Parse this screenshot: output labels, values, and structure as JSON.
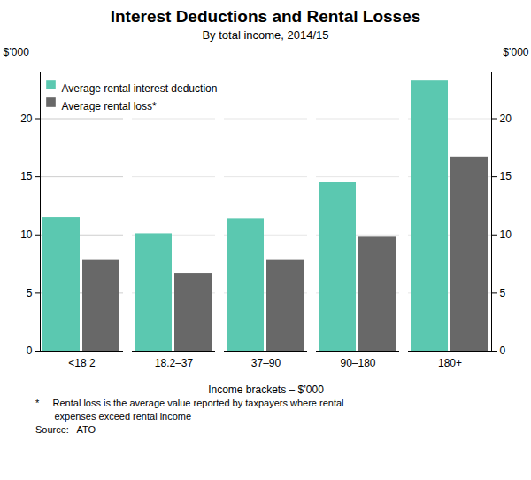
{
  "chart_data": {
    "type": "bar",
    "title": "Interest Deductions and Rental Losses",
    "subtitle": "By total income, 2014/15",
    "xlabel": "Income brackets – $’000",
    "ylabel": "$’000",
    "y2label": "$’000",
    "categories": [
      "<18 2",
      "18.2–37",
      "37–90",
      "90–180",
      "180+"
    ],
    "series": [
      {
        "name": "Average rental interest deduction",
        "color": "#5bc8b0",
        "values": [
          11.5,
          10.1,
          11.4,
          14.5,
          23.3
        ]
      },
      {
        "name": "Average rental loss*",
        "color": "#686868",
        "values": [
          7.8,
          6.7,
          7.8,
          9.8,
          16.7
        ]
      }
    ],
    "ylim": [
      0,
      24
    ],
    "yticks": [
      0,
      5,
      10,
      15,
      20
    ],
    "y2lim": [
      0,
      24
    ],
    "y2ticks": [
      0,
      5,
      10,
      15,
      20
    ],
    "grid": true,
    "legend": "upper left",
    "annotations": [
      "*     Rental loss is the average value reported by taxpayers where rental",
      "       expenses exceed rental income",
      "Source:   ATO"
    ]
  }
}
